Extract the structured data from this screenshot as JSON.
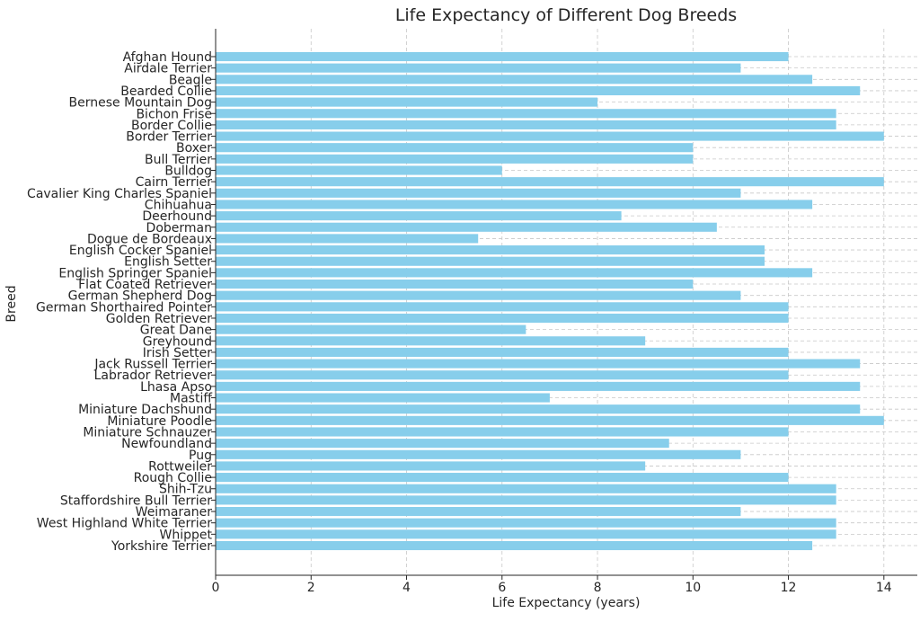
{
  "chart_data": {
    "type": "bar",
    "orientation": "horizontal",
    "title": "Life Expectancy of Different Dog Breeds",
    "xlabel": "Life Expectancy (years)",
    "ylabel": "Breed",
    "xlim": [
      0,
      14.7
    ],
    "xticks": [
      0,
      2,
      4,
      6,
      8,
      10,
      12,
      14
    ],
    "grid": true,
    "bar_color": "#87ceeb",
    "categories": [
      "Afghan Hound",
      "Airdale Terrier",
      "Beagle",
      "Bearded Collie",
      "Bernese Mountain Dog",
      "Bichon Frise",
      "Border Collie",
      "Border Terrier",
      "Boxer",
      "Bull Terrier",
      "Bulldog",
      "Cairn Terrier",
      "Cavalier King Charles Spaniel",
      "Chihuahua",
      "Deerhound",
      "Doberman",
      "Dogue de Bordeaux",
      "English Cocker Spaniel",
      "English Setter",
      "English Springer Spaniel",
      "Flat Coated Retriever",
      "German Shepherd Dog",
      "German Shorthaired Pointer",
      "Golden Retriever",
      "Great Dane",
      "Greyhound",
      "Irish Setter",
      "Jack Russell Terrier",
      "Labrador Retriever",
      "Lhasa Apso",
      "Mastiff",
      "Miniature Dachshund",
      "Miniature Poodle",
      "Miniature Schnauzer",
      "Newfoundland",
      "Pug",
      "Rottweiler",
      "Rough Collie",
      "Shih-Tzu",
      "Staffordshire Bull Terrier",
      "Weimaraner",
      "West Highland White Terrier",
      "Whippet",
      "Yorkshire Terrier"
    ],
    "values": [
      12,
      11,
      12.5,
      13.5,
      8,
      13,
      13,
      14,
      10,
      10,
      6,
      14,
      11,
      12.5,
      8.5,
      10.5,
      5.5,
      11.5,
      11.5,
      12.5,
      10,
      11,
      12,
      12,
      6.5,
      9,
      12,
      13.5,
      12,
      13.5,
      7,
      13.5,
      14,
      12,
      9.5,
      11,
      9,
      12,
      13,
      13,
      11,
      13,
      13,
      12.5
    ]
  }
}
